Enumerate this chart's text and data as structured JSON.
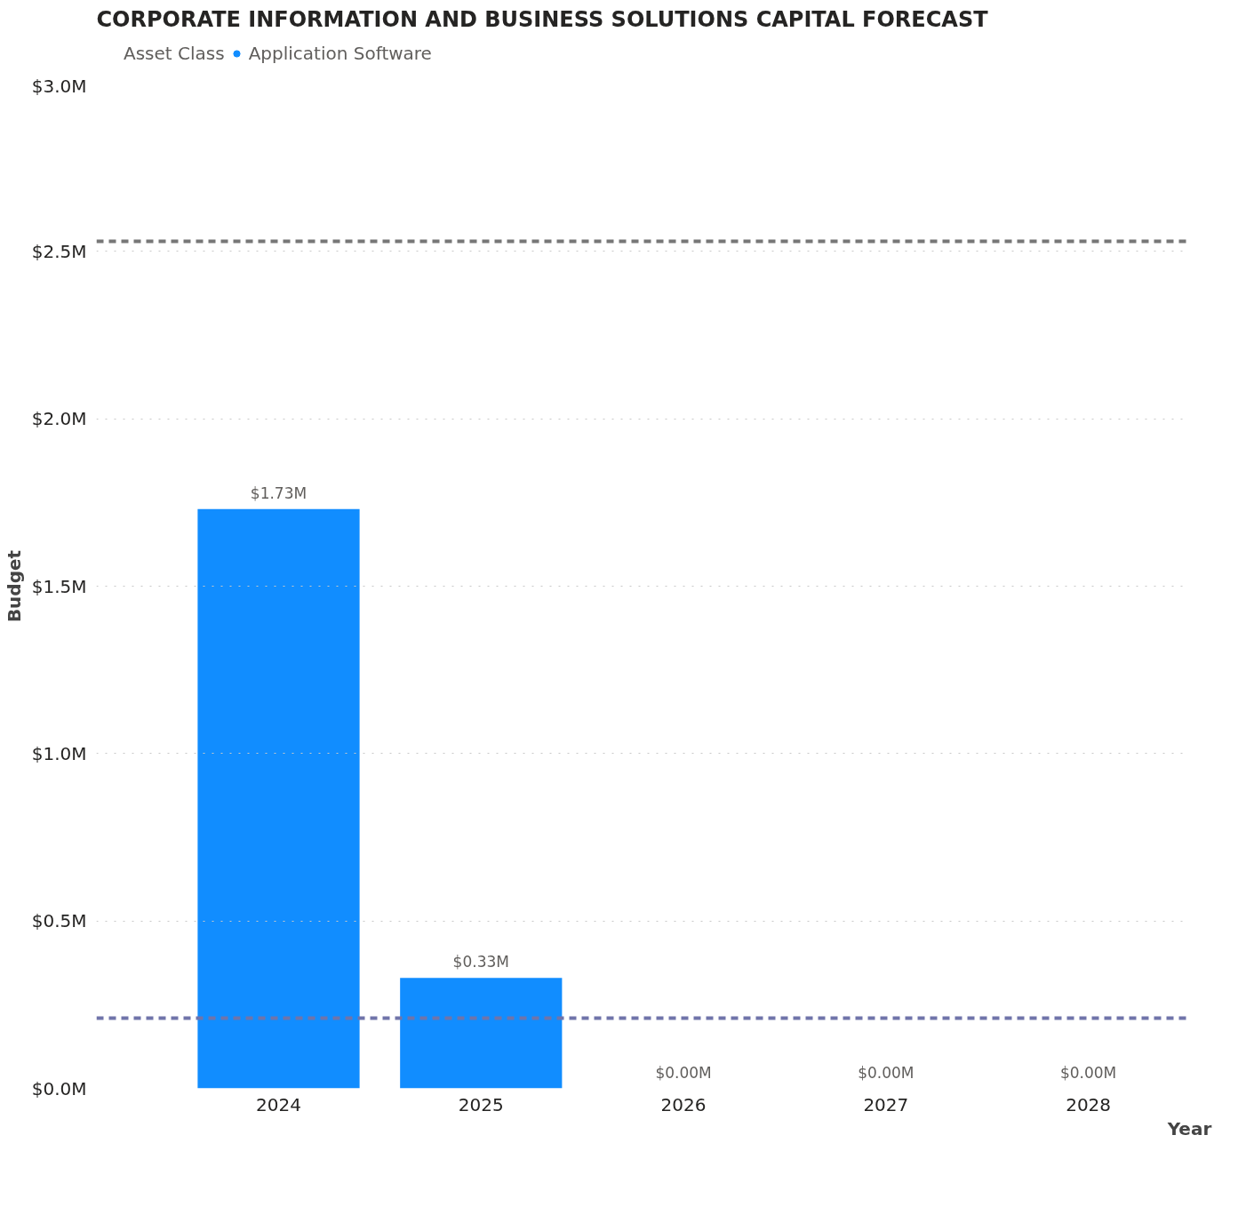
{
  "chart_data": {
    "type": "bar",
    "title": "CORPORATE INFORMATION AND BUSINESS SOLUTIONS CAPITAL FORECAST",
    "xlabel": "Year",
    "ylabel": "Budget",
    "legend_title": "Asset Class",
    "categories": [
      "2024",
      "2025",
      "2026",
      "2027",
      "2028"
    ],
    "series": [
      {
        "name": "Application Software",
        "color": "#118dff",
        "values": [
          1.73,
          0.33,
          0.0,
          0.0,
          0.0
        ],
        "value_labels": [
          "$1.73M",
          "$0.33M",
          "$0.00M",
          "$0.00M",
          "$0.00M"
        ]
      }
    ],
    "ylim": [
      0,
      3.0
    ],
    "yticks": [
      {
        "value": 0,
        "label": "$0.0M"
      },
      {
        "value": 0.5,
        "label": "$0.5M"
      },
      {
        "value": 1.0,
        "label": "$1.0M"
      },
      {
        "value": 1.5,
        "label": "$1.5M"
      },
      {
        "value": 2.0,
        "label": "$2.0M"
      },
      {
        "value": 2.5,
        "label": "$2.5M"
      },
      {
        "value": 3.0,
        "label": "$3.0M"
      }
    ],
    "ref_lines": [
      {
        "axis": "y",
        "value": 2.53,
        "color": "#777777",
        "line_style": "dashed"
      },
      {
        "axis": "y",
        "value": 0.21,
        "color": "#7074aa",
        "line_style": "dashed"
      }
    ],
    "grid": "y",
    "legend": "top left"
  }
}
